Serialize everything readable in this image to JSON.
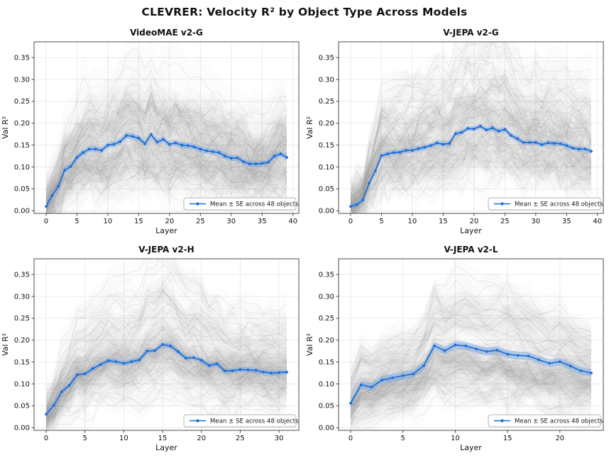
{
  "page_title": "CLEVRER: Velocity R² by Object Type Across Models",
  "colors": {
    "mean_line": "#1f6fd4",
    "mean_band": "#6ea3e6",
    "background_line": "#8c8c8c",
    "background_band": "#9a9a9a",
    "grid": "#ebebeb",
    "spine": "#4d4d4d",
    "tick": "#333333",
    "text": "#111111",
    "legend_border": "#b3b3b3"
  },
  "chart_data": [
    {
      "type": "line",
      "title": "VideoMAE v2-G",
      "xlabel": "Layer",
      "ylabel": "Val R²",
      "legend_label": "Mean ± SE across 48 objects",
      "n_objects": 48,
      "xticks": [
        0,
        5,
        10,
        15,
        20,
        25,
        30,
        35,
        40
      ],
      "yticks": [
        0,
        0.05,
        0.1,
        0.15,
        0.2,
        0.25,
        0.3,
        0.35
      ],
      "ylim": [
        -0.006,
        0.386
      ],
      "se_approx": 0.007,
      "grid": true,
      "legend_position": "lower right",
      "series": [
        {
          "name": "Mean ± SE across 48 objects",
          "x_start": 0,
          "values": [
            0.01,
            0.035,
            0.056,
            0.093,
            0.101,
            0.122,
            0.133,
            0.141,
            0.141,
            0.138,
            0.15,
            0.152,
            0.158,
            0.172,
            0.17,
            0.166,
            0.153,
            0.174,
            0.157,
            0.163,
            0.152,
            0.155,
            0.15,
            0.149,
            0.146,
            0.141,
            0.137,
            0.135,
            0.133,
            0.125,
            0.12,
            0.121,
            0.112,
            0.107,
            0.107,
            0.108,
            0.111,
            0.125,
            0.13,
            0.122
          ]
        }
      ]
    },
    {
      "type": "line",
      "title": "V-JEPA v2-G",
      "xlabel": "Layer",
      "ylabel": "Val R²",
      "legend_label": "Mean ± SE across 48 objects",
      "n_objects": 48,
      "xticks": [
        0,
        5,
        10,
        15,
        20,
        25,
        30,
        35,
        40
      ],
      "yticks": [
        0,
        0.05,
        0.1,
        0.15,
        0.2,
        0.25,
        0.3,
        0.35
      ],
      "ylim": [
        -0.006,
        0.386
      ],
      "se_approx": 0.006,
      "grid": true,
      "legend_position": "lower right",
      "series": [
        {
          "name": "Mean ± SE across 48 objects",
          "x_start": 0,
          "values": [
            0.01,
            0.014,
            0.025,
            0.063,
            0.091,
            0.126,
            0.13,
            0.133,
            0.134,
            0.138,
            0.138,
            0.142,
            0.145,
            0.149,
            0.155,
            0.152,
            0.154,
            0.176,
            0.179,
            0.188,
            0.187,
            0.193,
            0.185,
            0.189,
            0.182,
            0.186,
            0.172,
            0.165,
            0.156,
            0.156,
            0.156,
            0.151,
            0.155,
            0.154,
            0.153,
            0.149,
            0.143,
            0.141,
            0.141,
            0.136
          ]
        }
      ]
    },
    {
      "type": "line",
      "title": "V-JEPA v2-H",
      "xlabel": "Layer",
      "ylabel": "Val R²",
      "legend_label": "Mean ± SE across 48 objects",
      "n_objects": 48,
      "xticks": [
        0,
        5,
        10,
        15,
        20,
        25,
        30
      ],
      "yticks": [
        0,
        0.05,
        0.1,
        0.15,
        0.2,
        0.25,
        0.3,
        0.35
      ],
      "ylim": [
        -0.006,
        0.386
      ],
      "se_approx": 0.006,
      "grid": true,
      "legend_position": "lower right",
      "series": [
        {
          "name": "Mean ± SE across 48 objects",
          "x_start": 0,
          "values": [
            0.031,
            0.051,
            0.082,
            0.097,
            0.121,
            0.123,
            0.135,
            0.144,
            0.153,
            0.151,
            0.147,
            0.151,
            0.155,
            0.175,
            0.176,
            0.19,
            0.187,
            0.174,
            0.159,
            0.16,
            0.154,
            0.142,
            0.146,
            0.13,
            0.13,
            0.133,
            0.132,
            0.131,
            0.127,
            0.125,
            0.126,
            0.127
          ]
        }
      ]
    },
    {
      "type": "line",
      "title": "V-JEPA v2-L",
      "xlabel": "Layer",
      "ylabel": "Val R²",
      "legend_label": "Mean ± SE across 48 objects",
      "n_objects": 48,
      "xticks": [
        0,
        5,
        10,
        15,
        20
      ],
      "yticks": [
        0,
        0.05,
        0.1,
        0.15,
        0.2,
        0.25,
        0.3,
        0.35
      ],
      "ylim": [
        -0.006,
        0.386
      ],
      "se_approx": 0.009,
      "grid": true,
      "legend_position": "lower right",
      "series": [
        {
          "name": "Mean ± SE across 48 objects",
          "x_start": 0,
          "values": [
            0.056,
            0.098,
            0.093,
            0.109,
            0.114,
            0.119,
            0.123,
            0.142,
            0.187,
            0.176,
            0.189,
            0.187,
            0.18,
            0.174,
            0.177,
            0.168,
            0.165,
            0.164,
            0.155,
            0.147,
            0.151,
            0.141,
            0.13,
            0.125
          ]
        }
      ]
    }
  ]
}
